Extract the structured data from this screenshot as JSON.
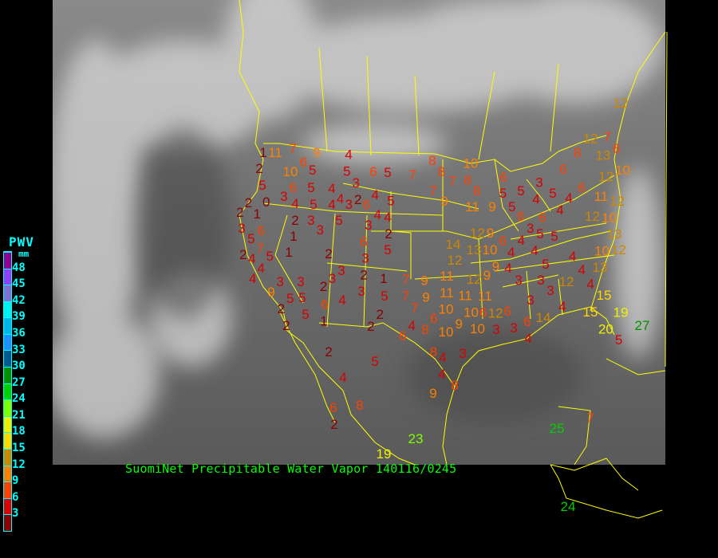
{
  "caption": "SuomiNet Precipitable Water Vapor 140116/0245",
  "legend": {
    "title": "PWV",
    "unit": "mm",
    "labels": [
      "3",
      "6",
      "9",
      "12",
      "15",
      "18",
      "21",
      "24",
      "27",
      "30",
      "33",
      "36",
      "39",
      "42",
      "45",
      "48"
    ],
    "colors": [
      "#8b0000",
      "#d80000",
      "#ff4000",
      "#ff8000",
      "#cc8800",
      "#ffd800",
      "#f0f000",
      "#80ff00",
      "#00d000",
      "#009000",
      "#005a90",
      "#1e90ff",
      "#00b8e8",
      "#00f0f0",
      "#8070d0",
      "#9040ff",
      "#900090"
    ]
  },
  "stations": [
    1,
    11,
    7,
    9,
    4,
    2,
    5,
    10,
    6,
    5,
    5,
    6,
    3,
    4,
    5,
    6,
    5,
    3,
    2,
    4,
    2,
    0,
    4,
    5,
    4,
    4,
    3,
    6,
    5,
    2,
    1,
    3,
    6,
    2,
    3,
    3,
    5,
    4,
    3,
    4,
    2,
    5,
    7,
    1,
    1,
    5,
    2,
    4,
    6,
    5,
    3,
    2,
    4,
    4,
    3,
    3,
    3,
    2,
    1,
    2,
    3,
    5,
    3,
    9,
    5,
    5,
    6,
    4,
    2,
    2,
    5,
    1,
    2,
    2,
    7,
    9,
    7,
    9,
    7,
    8,
    8,
    7,
    7,
    8,
    10,
    7,
    9,
    8,
    11,
    9,
    6,
    5,
    5,
    3,
    4,
    5,
    4,
    5,
    6,
    6,
    4,
    3,
    5,
    5,
    4,
    4,
    8,
    13,
    12,
    7,
    6,
    6,
    6,
    10,
    12,
    12,
    12,
    10,
    13,
    12,
    10,
    11,
    12,
    9,
    14,
    13,
    10,
    6,
    9,
    4,
    4,
    9,
    12,
    11,
    12,
    11,
    10,
    11,
    11,
    12,
    10,
    10,
    6,
    6,
    6,
    8,
    10,
    9,
    3,
    3,
    3,
    5,
    4,
    4,
    12,
    13,
    4,
    3,
    3,
    4,
    14,
    15,
    15,
    19,
    20,
    5,
    6,
    3,
    4,
    4,
    6,
    8,
    3,
    2,
    5,
    4,
    4,
    4,
    8,
    9,
    8,
    6,
    2,
    23,
    19,
    25,
    7,
    12,
    24,
    27
  ]
}
